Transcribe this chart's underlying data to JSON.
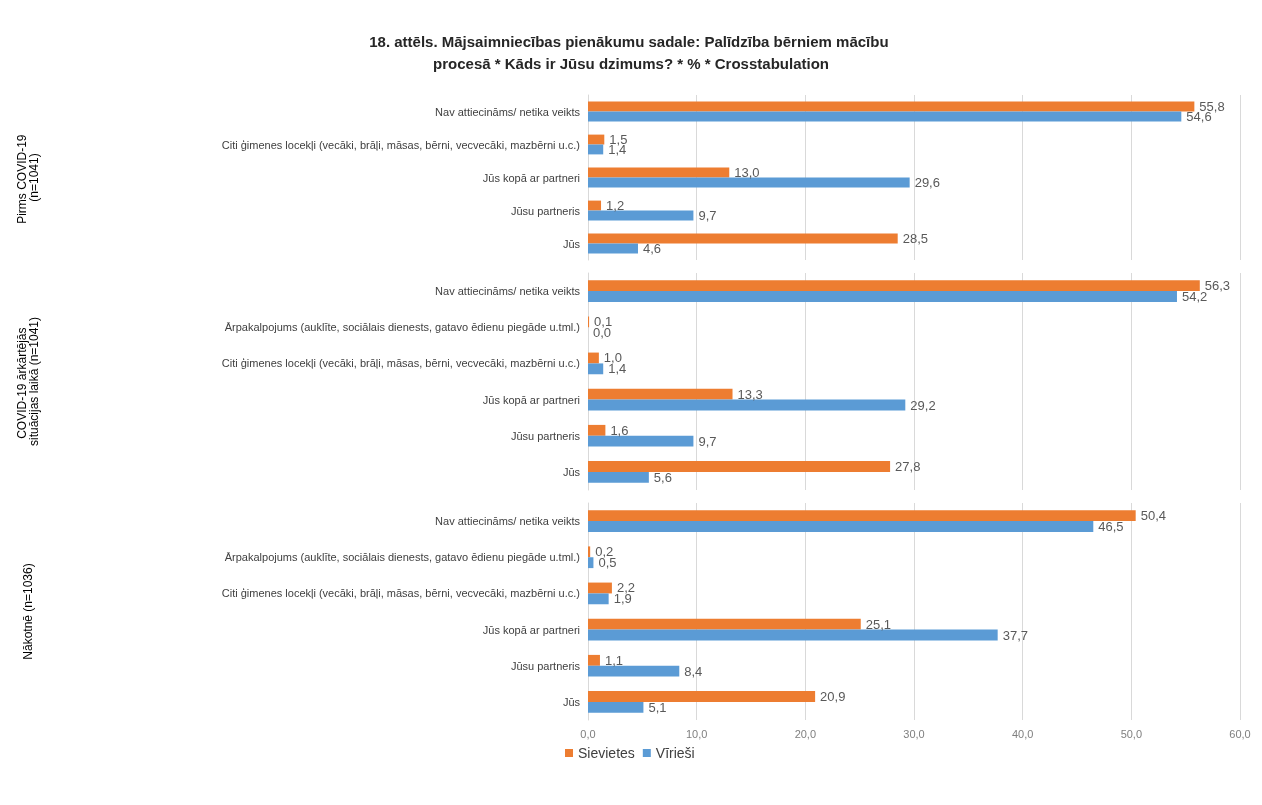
{
  "chart_data": [
    {
      "type": "bar",
      "orientation": "horizontal",
      "title": "18. attēls. Mājsaimniecības pienākumu sadale: Palīdzība bērniem mācību procesā * Kāds ir Jūsu dzimums? * % * Crosstabulation",
      "ylabel": "Pirms COVID-19 (n=1041)",
      "categories": [
        "Nav attiecināms/ netika veikts",
        "Citi ģimenes locekļi (vecāki, brāļi, māsas, bērni, vecvecāki, mazbērni u.c.)",
        "Jūs kopā ar partneri",
        "Jūsu partneris",
        "Jūs"
      ],
      "series": [
        {
          "color": "#ed7d31",
          "values": [
            55.8,
            1.5,
            13.0,
            1.2,
            28.5
          ],
          "value_labels": [
            "55,8",
            "1,5",
            "13,0",
            "1,2",
            "28,5"
          ]
        },
        {
          "color": "#5b9bd5",
          "values": [
            54.6,
            1.4,
            29.6,
            9.7,
            4.6
          ],
          "value_labels": [
            "54,6",
            "1,4",
            "29,6",
            "9,7",
            "4,6"
          ]
        }
      ],
      "xlim": [
        0,
        60
      ],
      "xticks": [
        0,
        10,
        20,
        30,
        40,
        50,
        60
      ],
      "grid": "x",
      "tick_labels": "y"
    },
    {
      "type": "bar",
      "orientation": "horizontal",
      "ylabel": "COVID-19 ārkārtējās situācijas laikā (n=1041)",
      "categories": [
        "Nav attiecināms/ netika veikts",
        "Ārpakalpojums (auklīte, sociālais dienests, gatavo ēdienu piegāde u.tml.)",
        "Citi ģimenes locekļi (vecāki, brāļi, māsas, bērni, vecvecāki, mazbērni u.c.)",
        "Jūs kopā ar partneri",
        "Jūsu partneris",
        "Jūs"
      ],
      "series": [
        {
          "color": "#ed7d31",
          "values": [
            56.3,
            0.1,
            1.0,
            13.3,
            1.6,
            27.8
          ],
          "value_labels": [
            "56,3",
            "0,1",
            "1,0",
            "13,3",
            "1,6",
            "27,8"
          ]
        },
        {
          "color": "#5b9bd5",
          "values": [
            54.2,
            0.0,
            1.4,
            29.2,
            9.7,
            5.6
          ],
          "value_labels": [
            "54,2",
            "0,0",
            "1,4",
            "29,2",
            "9,7",
            "5,6"
          ]
        }
      ],
      "xlim": [
        0,
        60
      ],
      "xticks": [
        0,
        10,
        20,
        30,
        40,
        50,
        60
      ],
      "grid": "x",
      "tick_labels": "y"
    },
    {
      "type": "bar",
      "orientation": "horizontal",
      "ylabel": "Nākotnē (n=1036)",
      "categories": [
        "Nav attiecināms/ netika veikts",
        "Ārpakalpojums (auklīte, sociālais dienests, gatavo ēdienu piegāde u.tml.)",
        "Citi ģimenes locekļi (vecāki, brāļi, māsas, bērni, vecvecāki, mazbērni u.c.)",
        "Jūs kopā ar partneri",
        "Jūsu partneris",
        "Jūs"
      ],
      "series": [
        {
          "name": "Sievietes",
          "color": "#ed7d31",
          "values": [
            50.4,
            0.2,
            2.2,
            25.1,
            1.1,
            20.9
          ],
          "value_labels": [
            "50,4",
            "0,2",
            "2,2",
            "25,1",
            "1,1",
            "20,9"
          ]
        },
        {
          "name": "Vīrieši",
          "color": "#5b9bd5",
          "values": [
            46.5,
            0.5,
            1.9,
            37.7,
            8.4,
            5.1
          ],
          "value_labels": [
            "46,5",
            "0,5",
            "1,9",
            "37,7",
            "8,4",
            "5,1"
          ]
        }
      ],
      "xlim": [
        0,
        60
      ],
      "xticks": [
        {
          "value": 0,
          "label": "0,0"
        },
        {
          "value": 10,
          "label": "10,0"
        },
        {
          "value": 20,
          "label": "20,0"
        },
        {
          "value": 30,
          "label": "30,0"
        },
        {
          "value": 40,
          "label": "40,0"
        },
        {
          "value": 50,
          "label": "50,0"
        },
        {
          "value": 60,
          "label": "60,0"
        }
      ],
      "grid": "x",
      "legend": "bottom"
    }
  ]
}
